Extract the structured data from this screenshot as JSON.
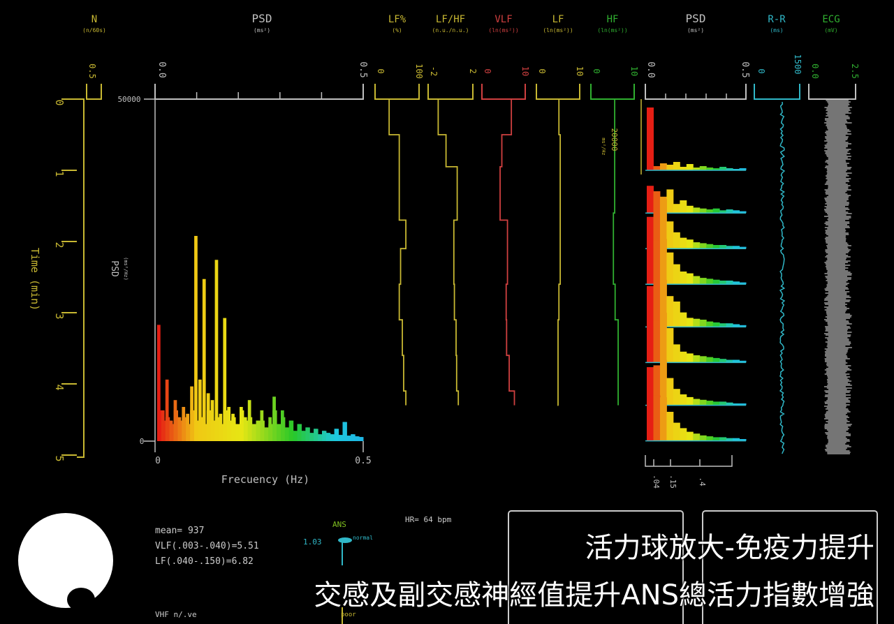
{
  "chart_data": [
    {
      "type": "bar",
      "title": "PSD",
      "subtitle": "(ms²)",
      "xlabel": "Frecuency (Hz)",
      "ylabel": "PSD",
      "ylabel_unit": "(ms²/Hz)",
      "xlim": [
        0,
        0.5
      ],
      "ylim": [
        0,
        50000
      ],
      "x_ticks": [
        "0",
        "0.5"
      ],
      "y_ticks": [
        "50000",
        "0"
      ],
      "top_ticks": [
        "0.0",
        "0.5"
      ],
      "freq_step": 0.01,
      "values": [
        17000,
        4500,
        9000,
        3000,
        6000,
        3500,
        5000,
        4000,
        8000,
        30000,
        9000,
        23700,
        7000,
        6000,
        26500,
        4000,
        18000,
        5000,
        4000,
        2500,
        5000,
        3500,
        6000,
        2500,
        3000,
        4500,
        2000,
        3500,
        6500,
        2500,
        4500,
        2000,
        3000,
        1500,
        2500,
        1500,
        2000,
        1200,
        1800,
        1000,
        1500,
        1200,
        1000,
        1800,
        900,
        2800,
        800,
        1000,
        700,
        600
      ]
    },
    {
      "type": "line",
      "title": "Time (min)",
      "time_ticks": [
        "0",
        "1",
        "2",
        "3",
        "4",
        "5"
      ],
      "trends": [
        {
          "name": "LF%",
          "unit": "(%)",
          "range": [
            0,
            100
          ],
          "range_labels": [
            "0",
            "100"
          ],
          "color": "#c8b832",
          "times": [
            0,
            0.5,
            1.7,
            2.1,
            2.6,
            3.1,
            3.6,
            4.1,
            4.3
          ],
          "values": [
            32,
            55,
            70,
            58,
            55,
            62,
            65,
            70,
            70
          ]
        },
        {
          "name": "LF/HF",
          "unit": "(n.u./n.u.)",
          "range": [
            -2,
            2
          ],
          "range_labels": [
            "-2",
            "2"
          ],
          "color": "#c8b832",
          "times": [
            0,
            0.5,
            0.95,
            1.7,
            2.6,
            3.1,
            3.6,
            4.1,
            4.3
          ],
          "values": [
            -1.1,
            -0.4,
            0.6,
            0.3,
            0.35,
            0.5,
            0.55,
            0.7,
            0.7
          ]
        },
        {
          "name": "VLF",
          "unit": "(ln(ms²))",
          "range": [
            0,
            10
          ],
          "range_labels": [
            "0",
            "10"
          ],
          "color": "#d04040",
          "times": [
            0,
            0.5,
            0.95,
            1.7,
            2.6,
            3.1,
            3.6,
            4.1,
            4.3
          ],
          "values": [
            6.8,
            4.6,
            4.2,
            5.9,
            5.6,
            5.7,
            6.3,
            7.5,
            7.5
          ]
        },
        {
          "name": "LF",
          "unit": "(ln(ms²))",
          "range": [
            0,
            10
          ],
          "range_labels": [
            "0",
            "10"
          ],
          "color": "#c8b832",
          "times": [
            0,
            0.5,
            1.7,
            2.6,
            3.1,
            4.3
          ],
          "values": [
            5.2,
            5.5,
            5.5,
            5.2,
            5.0,
            5.1
          ]
        },
        {
          "name": "HF",
          "unit": "(ln(ms²))",
          "range": [
            0,
            10
          ],
          "range_labels": [
            "0",
            "10"
          ],
          "color": "#30b030",
          "times": [
            0,
            1.6,
            2.6,
            3.1,
            4.3
          ],
          "values": [
            5.5,
            5.2,
            5.6,
            6.3,
            6.3
          ]
        }
      ]
    },
    {
      "type": "area",
      "title": "PSD",
      "subtitle": "(ms²)",
      "range_labels": [
        "0.0",
        "0.5"
      ],
      "scale_label": "20000",
      "scale_unit": "ms²/Hz",
      "bottom_ticks": [
        ".04",
        ".15",
        ".4"
      ],
      "row_times": [
        1,
        1.6,
        2.1,
        2.6,
        3.2,
        3.7,
        4.3,
        4.8
      ],
      "rows": [
        [
          90,
          6,
          10,
          8,
          12,
          5,
          9,
          4,
          6,
          4,
          3,
          5,
          3,
          2,
          3
        ],
        [
          30,
          24,
          18,
          26,
          10,
          14,
          8,
          6,
          5,
          4,
          5,
          3,
          4,
          3,
          2
        ],
        [
          35,
          40,
          55,
          30,
          18,
          12,
          10,
          7,
          6,
          5,
          4,
          4,
          3,
          3,
          2
        ],
        [
          40,
          48,
          50,
          35,
          22,
          14,
          12,
          9,
          7,
          6,
          5,
          4,
          4,
          3,
          2
        ],
        [
          45,
          50,
          52,
          34,
          28,
          16,
          10,
          9,
          8,
          6,
          5,
          4,
          4,
          3,
          2
        ],
        [
          40,
          46,
          55,
          38,
          20,
          12,
          10,
          8,
          7,
          6,
          5,
          4,
          3,
          3,
          2
        ],
        [
          42,
          44,
          50,
          30,
          18,
          12,
          9,
          7,
          6,
          5,
          4,
          4,
          3,
          2,
          2
        ],
        [
          44,
          50,
          48,
          32,
          20,
          14,
          10,
          8,
          6,
          5,
          4,
          4,
          3,
          3,
          2
        ]
      ]
    },
    {
      "type": "line",
      "title": "R-R",
      "subtitle": "(ms)",
      "range_labels": [
        "0",
        "1500"
      ],
      "color": "#30b8c8"
    },
    {
      "type": "line",
      "title": "ECG",
      "subtitle": "(mV)",
      "range_labels": [
        "0.0",
        "2.5"
      ],
      "color": "#30b030"
    }
  ],
  "n_column": {
    "title": "N",
    "unit": "(n/60s)",
    "range_label": "0.5"
  },
  "stats": {
    "mean": "mean= 937",
    "vlf": "VLF(.003-.040)=5.51",
    "lf": "LF(.040-.150)=6.82",
    "vhf": "VHF n/.ve",
    "hr": "HR= 64 bpm",
    "ans_label": "ANS",
    "ans_value": "1.03",
    "ans_marker": "normal",
    "ans_bottom": "poor"
  },
  "captions": {
    "line1": "活力球放大-免疫力提升",
    "line2": "交感及副交感神經值提升ANS總活力指數增強"
  },
  "colors": {
    "background": "#000000",
    "yellow": "#c8b832",
    "red": "#d04040",
    "green": "#30b030",
    "cyan": "#30b8c8",
    "grey": "#c0c0c0"
  }
}
